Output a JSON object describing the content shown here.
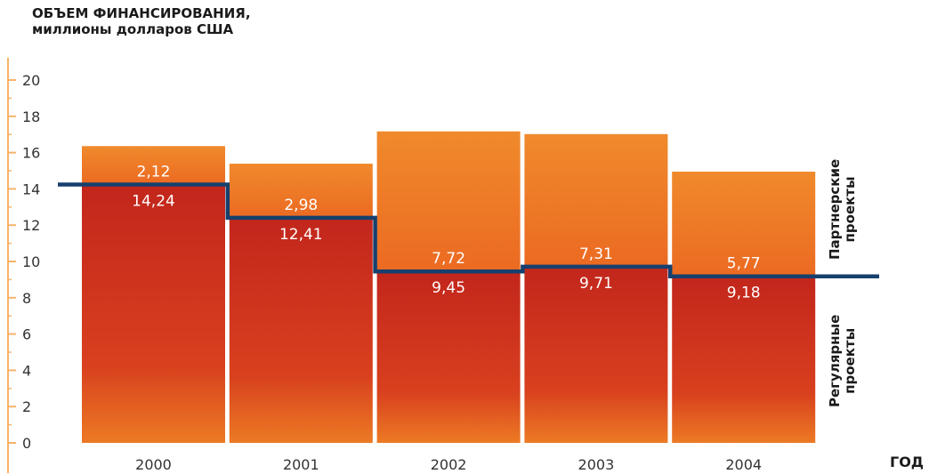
{
  "chart_data": {
    "type": "bar",
    "stacked": true,
    "ylabel_lines": [
      "ОБЪЕМ ФИНАНСИРОВАНИЯ,",
      "миллионы долларов США"
    ],
    "xlabel": "ГОД",
    "categories": [
      "2000",
      "2001",
      "2002",
      "2003",
      "2004"
    ],
    "series": [
      {
        "name_lines": [
          "Регулярные",
          "проекты"
        ],
        "values": [
          14.24,
          12.41,
          9.45,
          9.71,
          9.18
        ],
        "labels": [
          "14,24",
          "12,41",
          "9,45",
          "9,71",
          "9,18"
        ]
      },
      {
        "name_lines": [
          "Партнерские",
          "проекты"
        ],
        "values": [
          2.12,
          2.98,
          7.72,
          7.31,
          5.77
        ],
        "labels": [
          "2,12",
          "2,98",
          "7,72",
          "7,31",
          "5,77"
        ]
      }
    ],
    "ylim": [
      0,
      20
    ],
    "yticks": [
      0,
      2,
      4,
      6,
      8,
      10,
      12,
      14,
      16,
      18,
      20
    ],
    "grid": false,
    "colors": {
      "regular": "#c7281d",
      "partner": "#ef7523",
      "line": "#16406e",
      "axis": "#f6b36a"
    }
  }
}
